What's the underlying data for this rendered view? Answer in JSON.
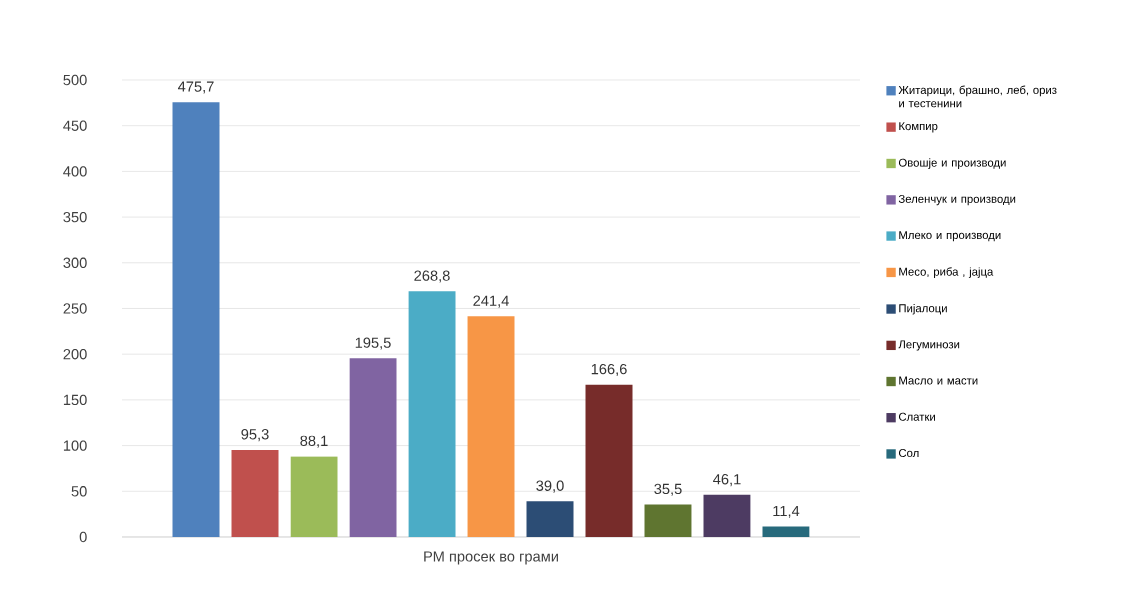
{
  "chart_data": {
    "type": "bar",
    "categories": [
      "РМ просек во грами"
    ],
    "ylim": [
      0,
      500
    ],
    "yticks": [
      0,
      50,
      100,
      150,
      200,
      250,
      300,
      350,
      400,
      450,
      500
    ],
    "grid": "y",
    "legend": "right",
    "series": [
      {
        "name": "Житарици, брашно, леб, ориз и тестенини",
        "color": "#4f81bd",
        "values": [
          475.7
        ],
        "value_labels": [
          "475,7"
        ]
      },
      {
        "name": "Компир",
        "color": "#c0504d",
        "values": [
          95.3
        ],
        "value_labels": [
          "95,3"
        ]
      },
      {
        "name": "Овошје и производи",
        "color": "#9bbb59",
        "values": [
          88.1
        ],
        "value_labels": [
          "88,1"
        ]
      },
      {
        "name": "Зеленчук  и производи",
        "color": "#8064a2",
        "values": [
          195.5
        ],
        "value_labels": [
          "195,5"
        ]
      },
      {
        "name": "Млеко и производи",
        "color": "#4bacc6",
        "values": [
          268.8
        ],
        "value_labels": [
          "268,8"
        ]
      },
      {
        "name": "Месо, риба , јајца",
        "color": "#f79646",
        "values": [
          241.4
        ],
        "value_labels": [
          "241,4"
        ]
      },
      {
        "name": "Пијалоци",
        "color": "#2c4d75",
        "values": [
          39.0
        ],
        "value_labels": [
          "39,0"
        ]
      },
      {
        "name": "Легуминози",
        "color": "#772c2a",
        "values": [
          166.6
        ],
        "value_labels": [
          "166,6"
        ]
      },
      {
        "name": "Масло и масти",
        "color": "#5f7530",
        "values": [
          35.5
        ],
        "value_labels": [
          "35,5"
        ]
      },
      {
        "name": "Слатки",
        "color": "#4d3b62",
        "values": [
          46.1
        ],
        "value_labels": [
          "46,1"
        ]
      },
      {
        "name": "Сол",
        "color": "#276a7c",
        "values": [
          11.4
        ],
        "value_labels": [
          "11,4"
        ]
      }
    ]
  }
}
